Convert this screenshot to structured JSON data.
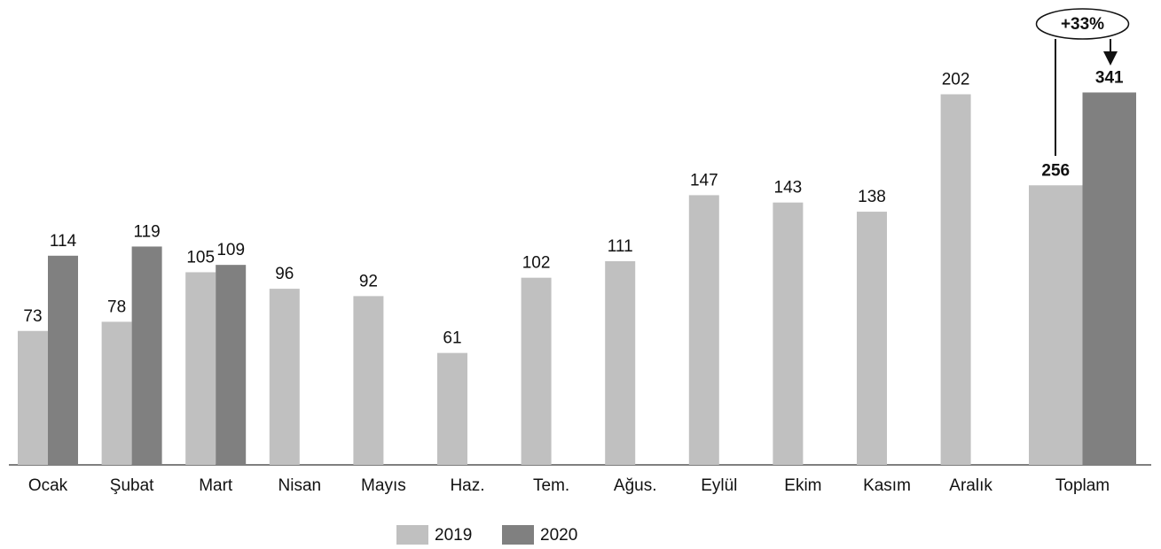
{
  "chart_data": [
    {
      "type": "bar",
      "categories": [
        "Ocak",
        "Şubat",
        "Mart",
        "Nisan",
        "Mayıs",
        "Haz.",
        "Tem.",
        "Ağus.",
        "Eylül",
        "Ekim",
        "Kasım",
        "Aralık"
      ],
      "series": [
        {
          "name": "2019",
          "color": "#c0c0c0",
          "values": [
            73,
            78,
            105,
            96,
            92,
            61,
            102,
            111,
            147,
            143,
            138,
            202
          ]
        },
        {
          "name": "2020",
          "color": "#808080",
          "values": [
            114,
            119,
            109,
            null,
            null,
            null,
            null,
            null,
            null,
            null,
            null,
            null
          ]
        }
      ],
      "ylim": [
        0,
        250
      ]
    },
    {
      "type": "bar",
      "categories": [
        "Toplam"
      ],
      "series": [
        {
          "color": "#c0c0c0",
          "values": [
            256
          ]
        },
        {
          "color": "#808080",
          "values": [
            341
          ]
        }
      ],
      "ylim": [
        0,
        420
      ],
      "annotation": "+33%"
    }
  ]
}
